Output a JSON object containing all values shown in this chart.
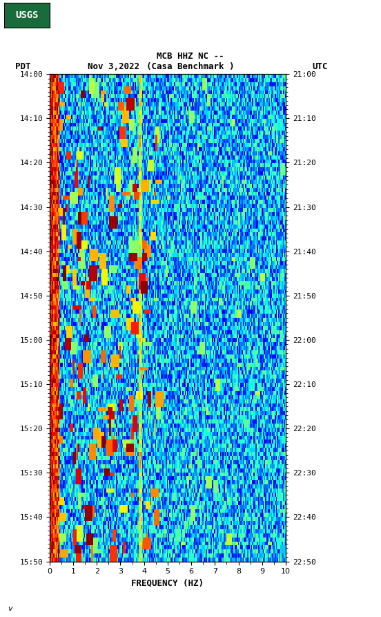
{
  "title_line1": "MCB HHZ NC --",
  "title_line2": "(Casa Benchmark )",
  "date_label": "Nov 3,2022",
  "tz_left": "PDT",
  "tz_right": "UTC",
  "time_start_left": "14:00",
  "time_end_left": "15:50",
  "time_start_right": "21:00",
  "time_end_right": "22:50",
  "freq_label": "FREQUENCY (HZ)",
  "freq_min": 0,
  "freq_max": 10,
  "time_ticks_left": [
    "14:00",
    "14:10",
    "14:20",
    "14:30",
    "14:40",
    "14:50",
    "15:00",
    "15:10",
    "15:20",
    "15:30",
    "15:40",
    "15:50"
  ],
  "time_ticks_right": [
    "21:00",
    "21:10",
    "21:20",
    "21:30",
    "21:40",
    "21:50",
    "22:00",
    "22:10",
    "22:20",
    "22:30",
    "22:40",
    "22:50"
  ],
  "background_color": "#ffffff",
  "fig_width": 5.52,
  "fig_height": 8.93,
  "usgs_green": "#1a6b3c",
  "colormap": "jet",
  "seed": 42
}
